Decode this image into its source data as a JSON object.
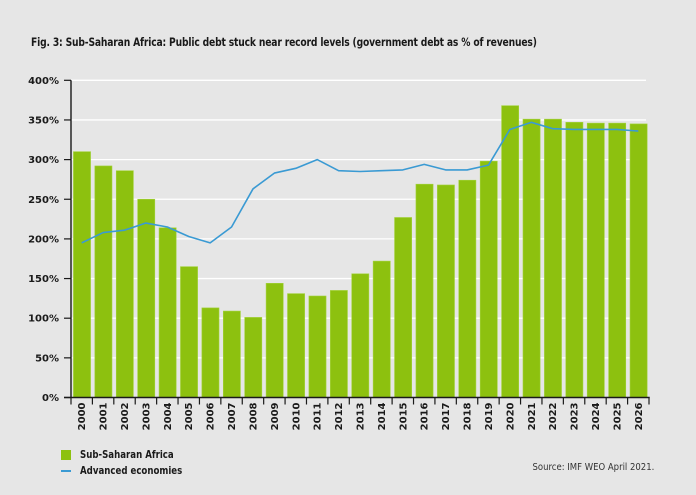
{
  "chart_data": {
    "type": "bar",
    "title": "Fig. 3: Sub-Saharan Africa: Public debt stuck near record levels (government debt as % of revenues)",
    "xlabel": "",
    "ylabel": "",
    "ylim": [
      0,
      400
    ],
    "yticks": [
      "0%",
      "50%",
      "100%",
      "150%",
      "200%",
      "250%",
      "300%",
      "350%",
      "400%"
    ],
    "ytick_values": [
      0,
      50,
      100,
      150,
      200,
      250,
      300,
      350,
      400
    ],
    "grid": true,
    "legend_position": "bottom-left",
    "categories": [
      "2000",
      "2001",
      "2002",
      "2003",
      "2004",
      "2005",
      "2006",
      "2007",
      "2008",
      "2009",
      "2010",
      "2011",
      "2012",
      "2013",
      "2014",
      "2015",
      "2016",
      "2017",
      "2018",
      "2019",
      "2020",
      "2021",
      "2022",
      "2023",
      "2024",
      "2025",
      "2026"
    ],
    "series": [
      {
        "name": "Sub-Saharan Africa",
        "type": "bar",
        "color": "#8dc10f",
        "values": [
          310,
          292,
          286,
          250,
          214,
          165,
          113,
          109,
          101,
          144,
          131,
          128,
          135,
          156,
          172,
          227,
          269,
          268,
          274,
          298,
          368,
          351,
          351,
          347,
          346,
          346,
          345
        ]
      },
      {
        "name": "Advanced economies",
        "type": "line",
        "color": "#3a9ad3",
        "values": [
          195,
          208,
          211,
          220,
          215,
          203,
          195,
          215,
          263,
          283,
          289,
          300,
          286,
          285,
          286,
          287,
          294,
          287,
          287,
          293,
          338,
          347,
          339,
          338,
          338,
          338,
          336
        ]
      }
    ],
    "source": "Source: IMF WEO April 2021."
  }
}
